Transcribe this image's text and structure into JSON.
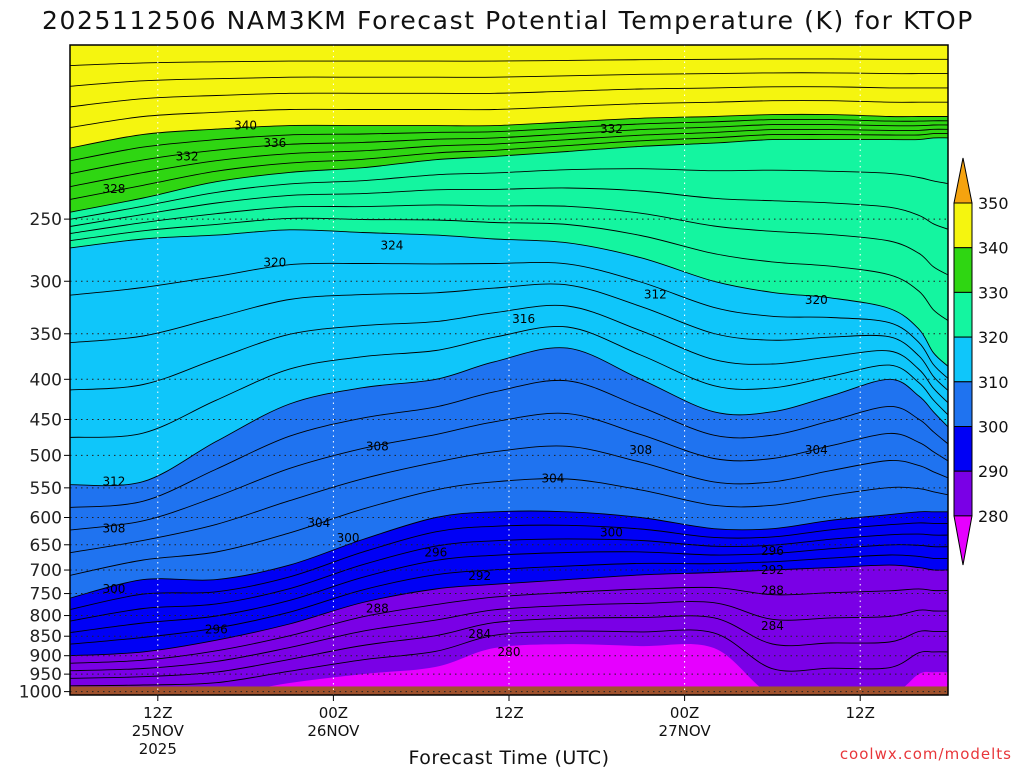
{
  "chart_data": {
    "type": "contour",
    "title": "2025112506 NAM3KM Forecast Potential Temperature (K) for KTOP",
    "xlabel": "Forecast Time (UTC)",
    "ylabel": "",
    "credit": "coolwx.com/modelts",
    "y_scale": "log",
    "y_reversed": true,
    "y_ticks": [
      250,
      300,
      350,
      400,
      450,
      500,
      550,
      600,
      650,
      700,
      750,
      800,
      850,
      900,
      950,
      1000
    ],
    "x_range": [
      "2025-11-25 06Z",
      "2025-11-27 18Z"
    ],
    "x_ticks": [
      {
        "time": "2025-11-25 12Z",
        "lines": [
          "12Z",
          "25NOV",
          "2025"
        ]
      },
      {
        "time": "2025-11-26 00Z",
        "lines": [
          "00Z",
          "26NOV"
        ]
      },
      {
        "time": "2025-11-26 12Z",
        "lines": [
          "12Z"
        ]
      },
      {
        "time": "2025-11-27 00Z",
        "lines": [
          "00Z",
          "27NOV"
        ]
      },
      {
        "time": "2025-11-27 12Z",
        "lines": [
          "12Z"
        ]
      }
    ],
    "grid": true,
    "contour_interval": 2,
    "fill_levels": [
      280,
      290,
      300,
      310,
      320,
      330,
      340,
      350
    ],
    "fill_colors": [
      "#e600ff",
      "#7a00e6",
      "#0000f5",
      "#1f73f0",
      "#0fc6fa",
      "#14f5a0",
      "#2fd612",
      "#f5f50f",
      "#f5a30f"
    ],
    "colorbar_labels": [
      "350",
      "340",
      "330",
      "320",
      "310",
      "300",
      "290",
      "280"
    ],
    "terrain_color": "#a0522d",
    "surface_pressure": 985,
    "contour_labels": [
      {
        "value": "340",
        "time": "2025-11-25 18Z",
        "p": 190
      },
      {
        "value": "336",
        "time": "2025-11-25 20Z",
        "p": 200
      },
      {
        "value": "332",
        "time": "2025-11-25 14Z",
        "p": 208
      },
      {
        "value": "332",
        "time": "2025-11-26 19Z",
        "p": 192
      },
      {
        "value": "328",
        "time": "2025-11-25 09Z",
        "p": 229
      },
      {
        "value": "324",
        "time": "2025-11-26 04Z",
        "p": 270
      },
      {
        "value": "320",
        "time": "2025-11-25 20Z",
        "p": 284
      },
      {
        "value": "320",
        "time": "2025-11-27 09Z",
        "p": 317
      },
      {
        "value": "316",
        "time": "2025-11-26 13Z",
        "p": 335
      },
      {
        "value": "312",
        "time": "2025-11-26 22Z",
        "p": 312
      },
      {
        "value": "312",
        "time": "2025-11-25 09Z",
        "p": 540
      },
      {
        "value": "308",
        "time": "2025-11-26 03Z",
        "p": 487
      },
      {
        "value": "308",
        "time": "2025-11-26 21Z",
        "p": 492
      },
      {
        "value": "308",
        "time": "2025-11-25 09Z",
        "p": 620
      },
      {
        "value": "304",
        "time": "2025-11-27 09Z",
        "p": 492
      },
      {
        "value": "304",
        "time": "2025-11-26 15Z",
        "p": 535
      },
      {
        "value": "304",
        "time": "2025-11-25 23Z",
        "p": 610
      },
      {
        "value": "300",
        "time": "2025-11-26 01Z",
        "p": 637
      },
      {
        "value": "300",
        "time": "2025-11-26 19Z",
        "p": 627
      },
      {
        "value": "300",
        "time": "2025-11-25 09Z",
        "p": 740
      },
      {
        "value": "296",
        "time": "2025-11-26 07Z",
        "p": 665
      },
      {
        "value": "296",
        "time": "2025-11-27 06Z",
        "p": 662
      },
      {
        "value": "296",
        "time": "2025-11-25 16Z",
        "p": 833
      },
      {
        "value": "292",
        "time": "2025-11-26 10Z",
        "p": 712
      },
      {
        "value": "292",
        "time": "2025-11-27 06Z",
        "p": 700
      },
      {
        "value": "288",
        "time": "2025-11-27 06Z",
        "p": 743
      },
      {
        "value": "288",
        "time": "2025-11-26 03Z",
        "p": 784
      },
      {
        "value": "284",
        "time": "2025-11-26 10Z",
        "p": 845
      },
      {
        "value": "284",
        "time": "2025-11-27 06Z",
        "p": 825
      },
      {
        "value": "280",
        "time": "2025-11-26 12Z",
        "p": 890
      }
    ],
    "layers": [
      {
        "theta": 350,
        "p_top": [
          150,
          150,
          150,
          150,
          150,
          150,
          150,
          150,
          150,
          150,
          150,
          150,
          150,
          150,
          150,
          150
        ]
      },
      {
        "theta": 340,
        "p_top": [
          203,
          195,
          192,
          190,
          190,
          190,
          190,
          188,
          186,
          185,
          184,
          184,
          185,
          185,
          185,
          185
        ]
      },
      {
        "theta": 330,
        "p_top": [
          245,
          235,
          224,
          218,
          215,
          210,
          208,
          205,
          202,
          200,
          198,
          198,
          198,
          198,
          197,
          197
        ]
      },
      {
        "theta": 320,
        "p_top": [
          272,
          265,
          262,
          258,
          260,
          262,
          265,
          268,
          280,
          300,
          310,
          315,
          325,
          345,
          370,
          385
        ]
      },
      {
        "theta": 310,
        "p_top": [
          545,
          540,
          480,
          430,
          410,
          400,
          380,
          365,
          400,
          440,
          440,
          420,
          400,
          420,
          440,
          460
        ]
      },
      {
        "theta": 300,
        "p_top": [
          760,
          720,
          720,
          690,
          640,
          600,
          590,
          590,
          600,
          620,
          620,
          605,
          595,
          590,
          590,
          590
        ]
      },
      {
        "theta": 290,
        "p_top": [
          900,
          890,
          860,
          820,
          770,
          740,
          730,
          720,
          710,
          705,
          700,
          695,
          690,
          695,
          700,
          700
        ]
      },
      {
        "theta": 280,
        "p_top": [
          1010,
          1010,
          1010,
          975,
          950,
          930,
          880,
          870,
          875,
          880,
          1010,
          1010,
          1010,
          950,
          945,
          945
        ]
      }
    ],
    "layer_times": [
      "2025-11-25 06Z",
      "2025-11-25 11Z",
      "2025-11-25 16Z",
      "2025-11-25 21Z",
      "2025-11-26 02Z",
      "2025-11-26 07Z",
      "2025-11-26 11Z",
      "2025-11-26 16Z",
      "2025-11-26 21Z",
      "2025-11-27 02Z",
      "2025-11-27 06Z",
      "2025-11-27 10Z",
      "2025-11-27 14Z",
      "2025-11-27 16Z",
      "2025-11-27 17Z",
      "2025-11-27 18Z"
    ]
  }
}
